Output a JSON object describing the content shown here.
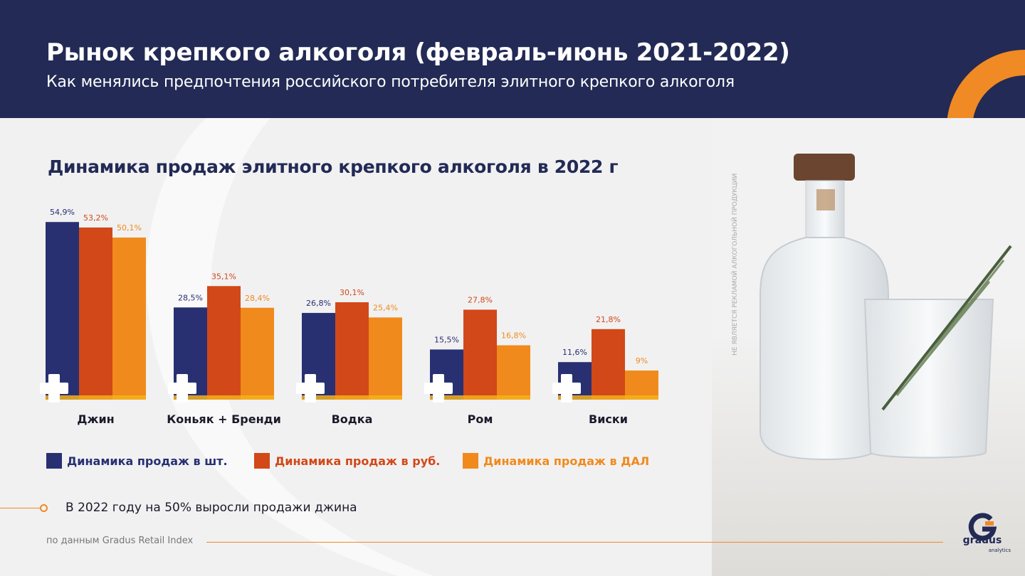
{
  "header": {
    "title": "Рынок крепкого алкоголя (февраль-июнь 2021-2022)",
    "subtitle": "Как менялись предпочтения российского потребителя элитного крепкого алкоголя"
  },
  "colors": {
    "navy": "#283072",
    "red": "#d24818",
    "orange": "#f08a1c",
    "header_bg": "#222a55",
    "accent": "#f08a24"
  },
  "chart_data": {
    "type": "bar",
    "title": "Динамика продаж элитного крепкого алкоголя в 2022 г",
    "categories": [
      "Джин",
      "Коньяк + Бренди",
      "Водка",
      "Ром",
      "Виски"
    ],
    "series": [
      {
        "name": "Динамика продаж в шт.",
        "color": "#283072",
        "values": [
          54.9,
          28.5,
          26.8,
          15.5,
          11.6
        ],
        "labels": [
          "54,9%",
          "28,5%",
          "26,8%",
          "15,5%",
          "11,6%"
        ]
      },
      {
        "name": "Динамика продаж в руб.",
        "color": "#d24818",
        "values": [
          53.2,
          35.1,
          30.1,
          27.8,
          21.8
        ],
        "labels": [
          "53,2%",
          "35,1%",
          "30,1%",
          "27,8%",
          "21,8%"
        ]
      },
      {
        "name": "Динамика продаж в ДАЛ",
        "color": "#f08a1c",
        "values": [
          50.1,
          28.4,
          25.4,
          16.8,
          9
        ],
        "labels": [
          "50,1%",
          "28,4%",
          "25,4%",
          "16,8%",
          "9%"
        ]
      }
    ],
    "legend_position": "bottom",
    "grid": false
  },
  "note": "В 2022 году на 50% выросли продажи джина",
  "source": "по данным Gradus Retail Index",
  "disclaimer": "НЕ ЯВЛЯЕТСЯ РЕКЛАМОЙ АЛКОГОЛЬНОЙ ПРОДУКЦИИ",
  "logo": {
    "name": "gradus",
    "sub": "analytics"
  }
}
